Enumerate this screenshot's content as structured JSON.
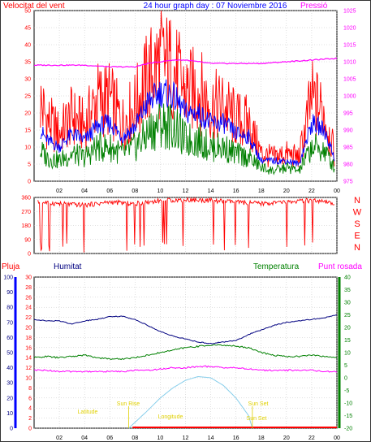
{
  "chart_data": [
    {
      "type": "line",
      "id": "wind-pressure",
      "title": "24 hour graph day : 07 Noviembre 2016",
      "left_axis_label": "Velocitat del vent",
      "right_axis_label": "Pressió",
      "ylim_left": [
        0,
        50
      ],
      "ylim_right": [
        975,
        1025
      ],
      "y_ticks_left": [
        0,
        5,
        10,
        15,
        20,
        25,
        30,
        35,
        40,
        45,
        50
      ],
      "y_ticks_right": [
        975,
        980,
        985,
        990,
        995,
        1000,
        1005,
        1010,
        1015,
        1020,
        1025
      ],
      "x_ticks": [
        "02",
        "04",
        "06",
        "08",
        "10",
        "12",
        "14",
        "16",
        "18",
        "20",
        "22",
        "00"
      ],
      "x_range_hours": [
        0,
        24
      ],
      "grid": true,
      "series": [
        {
          "color": "#ff0000",
          "axis": "left",
          "x": [
            0.5,
            1,
            2,
            3,
            4,
            5,
            6,
            7,
            8,
            9,
            10,
            11,
            12,
            13,
            14,
            15,
            16,
            17,
            18,
            19,
            20,
            21,
            22,
            23,
            23.8
          ],
          "y": [
            23,
            18,
            14,
            19,
            16,
            24,
            24,
            17,
            22,
            30,
            35,
            33,
            26,
            27,
            22,
            22,
            18,
            17,
            8,
            7,
            8,
            7,
            24,
            20,
            8
          ]
        },
        {
          "color": "#0000ff",
          "axis": "left",
          "x": [
            0.5,
            1,
            2,
            3,
            4,
            5,
            6,
            7,
            8,
            9,
            10,
            11,
            12,
            13,
            14,
            15,
            16,
            17,
            18,
            19,
            20,
            21,
            22,
            23,
            23.8
          ],
          "y": [
            15,
            12,
            10,
            14,
            12,
            16,
            17,
            13,
            16,
            23,
            26,
            25,
            20,
            20,
            17,
            17,
            14,
            13,
            6,
            6,
            6,
            5,
            17,
            15,
            7
          ]
        },
        {
          "color": "#008000",
          "axis": "left",
          "x": [
            0.5,
            1,
            2,
            3,
            4,
            5,
            6,
            7,
            8,
            9,
            10,
            11,
            12,
            13,
            14,
            15,
            16,
            17,
            18,
            19,
            20,
            21,
            22,
            23,
            23.8
          ],
          "y": [
            9,
            7,
            6,
            8,
            7,
            10,
            10,
            8,
            10,
            14,
            17,
            16,
            12,
            12,
            10,
            10,
            8,
            7,
            4,
            3,
            4,
            3,
            10,
            9,
            4
          ]
        },
        {
          "color": "#ff00ff",
          "axis": "right",
          "x": [
            0,
            2,
            4,
            6,
            8,
            9,
            10,
            11,
            12,
            13,
            14,
            16,
            18,
            20,
            22,
            24
          ],
          "y": [
            1009,
            1009,
            1009,
            1008.5,
            1008.5,
            1009.5,
            1010,
            1010.5,
            1010.5,
            1010,
            1009.5,
            1009.5,
            1009.5,
            1010,
            1010.5,
            1011
          ]
        }
      ]
    },
    {
      "type": "line",
      "id": "wind-direction",
      "right_labels": [
        "N",
        "W",
        "S",
        "E",
        "N"
      ],
      "ylim": [
        0,
        360
      ],
      "y_ticks": [
        0,
        90,
        180,
        270,
        360
      ],
      "x_range_hours": [
        0,
        24
      ],
      "grid": true,
      "series": [
        {
          "color": "#ff0000",
          "x": [
            0.3,
            2,
            4,
            6,
            8,
            10,
            12,
            14,
            16,
            18,
            20,
            22,
            23.8
          ],
          "y": [
            330,
            320,
            310,
            330,
            320,
            340,
            345,
            340,
            330,
            320,
            330,
            340,
            320
          ]
        }
      ]
    },
    {
      "type": "line",
      "id": "rain-humidity-temp",
      "labels": {
        "rain": "Pluja",
        "humidity": "Humitat",
        "temperature": "Temperatura",
        "dewpoint": "Punt rosada"
      },
      "ylim_rain": [
        0,
        30
      ],
      "ylim_humidity": [
        0,
        100
      ],
      "ylim_temp": [
        -20,
        40
      ],
      "y_ticks_rain": [
        0,
        2,
        4,
        6,
        8,
        10,
        12,
        14,
        16,
        18,
        20,
        22,
        24,
        26,
        28,
        30
      ],
      "y_ticks_humidity": [
        0,
        10,
        20,
        30,
        40,
        50,
        60,
        70,
        80,
        90,
        100
      ],
      "y_ticks_temp": [
        -20,
        -15,
        -10,
        -5,
        0,
        5,
        10,
        15,
        20,
        25,
        30,
        35,
        40
      ],
      "x_ticks": [
        "02",
        "04",
        "06",
        "08",
        "10",
        "12",
        "14",
        "16",
        "18",
        "20",
        "22",
        "00"
      ],
      "x_range_hours": [
        0,
        24
      ],
      "grid": true,
      "annotations": [
        "Sun Rise",
        "Sun Set",
        "Latitude",
        "Longitude",
        "Sun Set"
      ],
      "series": [
        {
          "color": "#000080",
          "axis": "humidity",
          "x": [
            0,
            1,
            2,
            3,
            4,
            5,
            6,
            7,
            8,
            9,
            10,
            11,
            12,
            13,
            14,
            15,
            16,
            17,
            18,
            19,
            20,
            21,
            22,
            23,
            24
          ],
          "y": [
            72,
            71,
            71,
            69,
            71,
            72,
            74,
            74,
            72,
            68,
            64,
            61,
            59,
            57,
            56,
            57,
            58,
            62,
            65,
            68,
            70,
            71,
            72,
            73,
            75
          ]
        },
        {
          "color": "#008000",
          "axis": "temp",
          "x": [
            0,
            1,
            2,
            3,
            4,
            5,
            6,
            7,
            8,
            9,
            10,
            11,
            12,
            13,
            14,
            15,
            16,
            17,
            18,
            19,
            20,
            21,
            22,
            23,
            24
          ],
          "y": [
            8,
            8.5,
            8,
            8.5,
            9,
            8,
            7.5,
            7.5,
            8,
            9,
            10,
            11,
            12,
            12.5,
            13,
            13,
            12.5,
            12,
            10,
            9,
            8.5,
            8.5,
            9,
            8.5,
            8
          ]
        },
        {
          "color": "#ff00ff",
          "axis": "temp",
          "x": [
            0,
            1,
            2,
            3,
            4,
            5,
            6,
            7,
            8,
            9,
            10,
            11,
            12,
            13,
            14,
            15,
            16,
            17,
            18,
            19,
            20,
            21,
            22,
            23,
            24
          ],
          "y": [
            3,
            3,
            2.5,
            2.5,
            2.5,
            2.5,
            2.5,
            2.5,
            3,
            3,
            3.5,
            4,
            4,
            4.5,
            4.5,
            4,
            4,
            3.5,
            3,
            3,
            3,
            3,
            3,
            2.5,
            2.5
          ]
        },
        {
          "color": "#87ceeb",
          "axis": "temp",
          "x": [
            7.5,
            9,
            10,
            11,
            12,
            13,
            14,
            15,
            16,
            17,
            17.3
          ],
          "y": [
            -20,
            -13,
            -8,
            -4,
            -1,
            0.5,
            0,
            -3,
            -8,
            -15,
            -20
          ]
        }
      ]
    }
  ]
}
